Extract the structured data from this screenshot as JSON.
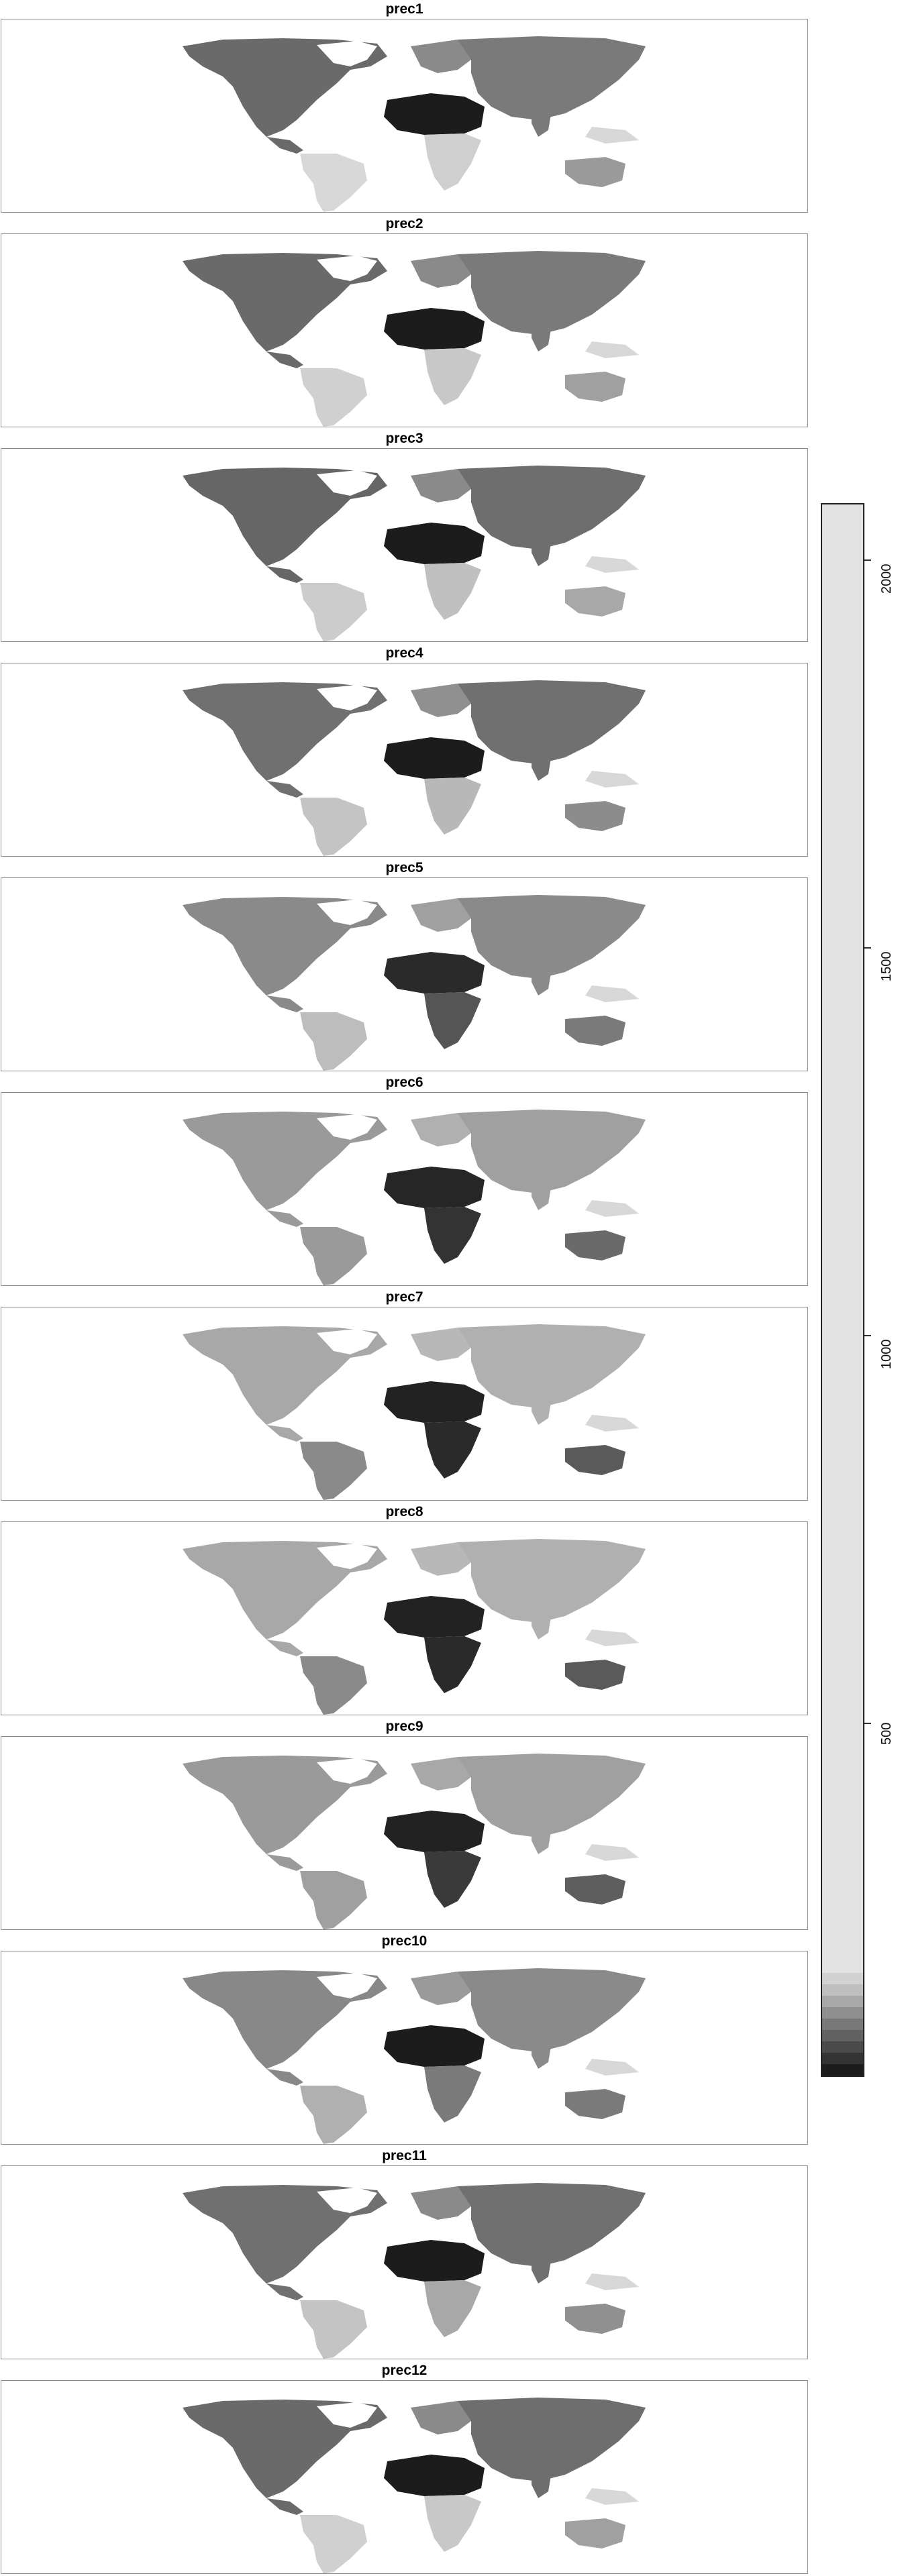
{
  "panels": [
    {
      "title": "prec1"
    },
    {
      "title": "prec2"
    },
    {
      "title": "prec3"
    },
    {
      "title": "prec4"
    },
    {
      "title": "prec5"
    },
    {
      "title": "prec6"
    },
    {
      "title": "prec7"
    },
    {
      "title": "prec8"
    },
    {
      "title": "prec9"
    },
    {
      "title": "prec10"
    },
    {
      "title": "prec11"
    },
    {
      "title": "prec12"
    }
  ],
  "legend": {
    "ticks": [
      "2000",
      "1500",
      "1000",
      "500"
    ],
    "range": [
      0,
      2200
    ],
    "colors": [
      "#1c1c1c",
      "#333333",
      "#4a4a4a",
      "#616161",
      "#787878",
      "#8f8f8f",
      "#a8a8a8",
      "#bfbfbf",
      "#d2d2d2",
      "#e3e3e3"
    ]
  },
  "map": {
    "land_color_light": "#e0e0e0",
    "land_color_dark": "#1e1e1e",
    "ocean_color": "#ffffff"
  }
}
